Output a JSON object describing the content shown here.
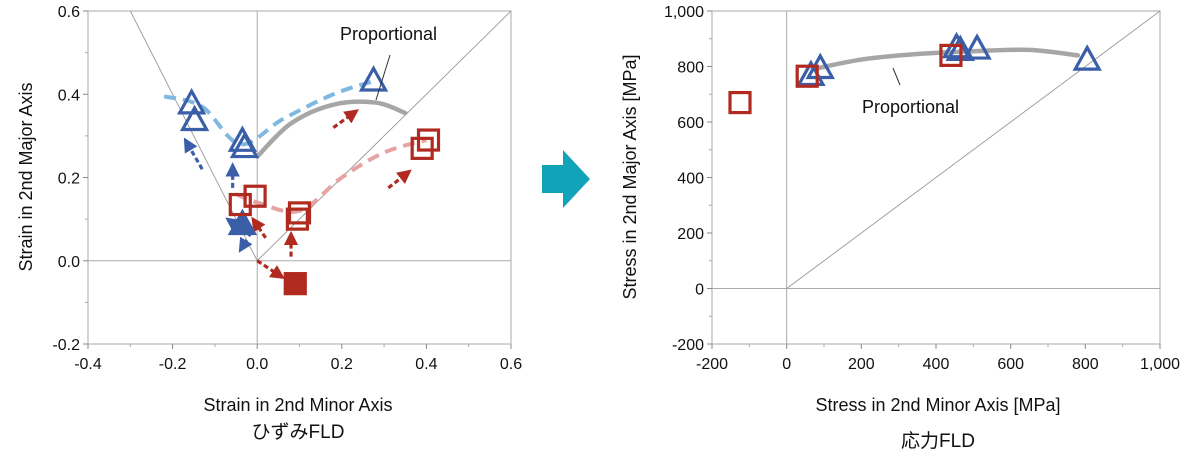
{
  "colors": {
    "triangle": "#3a5ea8",
    "square": "#b02a20",
    "blue_dash": "#7fb8e0",
    "red_dash": "#e6a3a3",
    "proportional": "#a6a6a6",
    "arrow_red": "#b02a20",
    "arrow_blue": "#3a5ea8",
    "transition_arrow": "#13a3b8",
    "axis_gray": "#aaaaaa"
  },
  "transition_arrow_icon": "right-arrow-icon",
  "chart_data": [
    {
      "type": "scatter",
      "caption": "ひずみFLD",
      "xlabel": "Strain in 2nd Minor Axis",
      "ylabel": "Strain in 2nd Major Axis",
      "xlim": [
        -0.4,
        0.6
      ],
      "ylim": [
        -0.2,
        0.6
      ],
      "xticks": [
        "-0.4",
        "-0.2",
        "0.0",
        "0.2",
        "0.4",
        "0.6"
      ],
      "yticks": [
        "-0.2",
        "0.0",
        "0.2",
        "0.4",
        "0.6"
      ],
      "annotation": "Proportional",
      "reference_lines": [
        {
          "x": [
            -0.3,
            0.0,
            0.6
          ],
          "y": [
            0.6,
            0.0,
            0.6
          ]
        }
      ],
      "proportional_path": {
        "x": [
          0.0,
          0.08,
          0.18,
          0.28,
          0.35
        ],
        "y": [
          0.25,
          0.33,
          0.375,
          0.38,
          0.355
        ]
      },
      "dashed_paths": [
        {
          "color": "blue",
          "x": [
            -0.22,
            -0.13,
            -0.04,
            0.06,
            0.18,
            0.27
          ],
          "y": [
            0.395,
            0.37,
            0.28,
            0.34,
            0.4,
            0.43
          ]
        },
        {
          "color": "red",
          "x": [
            -0.05,
            0.0,
            0.1,
            0.2,
            0.3,
            0.4
          ],
          "y": [
            0.16,
            0.14,
            0.12,
            0.2,
            0.26,
            0.29
          ]
        }
      ],
      "series": [
        {
          "marker": "triangle-filled",
          "x": [
            -0.035
          ],
          "y": [
            0.085
          ]
        },
        {
          "marker": "square-filled",
          "x": [
            0.09
          ],
          "y": [
            -0.055
          ]
        },
        {
          "marker": "triangle-open",
          "x": [
            -0.155,
            -0.148,
            -0.035,
            -0.03,
            0.275
          ],
          "y": [
            0.375,
            0.335,
            0.285,
            0.27,
            0.43
          ]
        },
        {
          "marker": "square-open",
          "x": [
            -0.04,
            -0.005,
            0.095,
            0.1,
            0.39,
            0.405
          ],
          "y": [
            0.135,
            0.155,
            0.1,
            0.115,
            0.27,
            0.29
          ]
        }
      ],
      "arrows": [
        {
          "color": "blue",
          "from": [
            -0.015,
            0.06
          ],
          "to": [
            -0.07,
            0.1
          ]
        },
        {
          "color": "blue",
          "from": [
            -0.025,
            0.05
          ],
          "to": [
            -0.04,
            0.025
          ]
        },
        {
          "color": "blue",
          "from": [
            -0.13,
            0.22
          ],
          "to": [
            -0.17,
            0.29
          ]
        },
        {
          "color": "blue",
          "from": [
            -0.058,
            0.175
          ],
          "to": [
            -0.058,
            0.23
          ]
        },
        {
          "color": "red",
          "from": [
            0.0,
            0.0
          ],
          "to": [
            0.06,
            -0.04
          ]
        },
        {
          "color": "red",
          "from": [
            0.08,
            0.01
          ],
          "to": [
            0.08,
            0.065
          ]
        },
        {
          "color": "red",
          "from": [
            0.02,
            0.055
          ],
          "to": [
            -0.01,
            0.1
          ]
        },
        {
          "color": "red",
          "from": [
            0.18,
            0.32
          ],
          "to": [
            0.235,
            0.36
          ]
        },
        {
          "color": "red",
          "from": [
            0.31,
            0.175
          ],
          "to": [
            0.36,
            0.215
          ]
        }
      ]
    },
    {
      "type": "scatter",
      "caption": "応力FLD",
      "xlabel": "Stress in 2nd Minor Axis [MPa]",
      "ylabel": "Stress in 2nd Major Axis [MPa]",
      "xlim": [
        -200,
        1000
      ],
      "ylim": [
        -200,
        1000
      ],
      "xticks": [
        "-200",
        "0",
        "200",
        "400",
        "600",
        "800",
        "1,000"
      ],
      "yticks": [
        "-200",
        "0",
        "200",
        "400",
        "600",
        "800",
        "1,000"
      ],
      "annotation": "Proportional",
      "reference_lines": [
        {
          "x": [
            0,
            1000
          ],
          "y": [
            0,
            1000
          ]
        }
      ],
      "proportional_path": {
        "x": [
          70,
          200,
          350,
          500,
          650,
          780
        ],
        "y": [
          790,
          825,
          845,
          855,
          860,
          840
        ]
      },
      "series": [
        {
          "marker": "triangle-open",
          "x": [
            65,
            90,
            455,
            465,
            510,
            805
          ],
          "y": [
            765,
            790,
            865,
            855,
            860,
            820
          ]
        },
        {
          "marker": "square-open",
          "x": [
            -125,
            55,
            440
          ],
          "y": [
            670,
            765,
            840
          ]
        }
      ]
    }
  ]
}
